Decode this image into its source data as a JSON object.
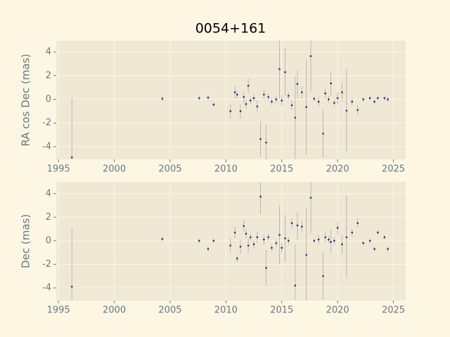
{
  "chart_data": [
    {
      "type": "scatter",
      "title": "0054+161",
      "ylabel": "RA cos Dec (mas)",
      "color": "#2a2a8a",
      "error_color": "#b0aca0",
      "grid": true,
      "xlim": [
        1994.8,
        2026.1
      ],
      "xticks": [
        1995,
        2000,
        2005,
        2010,
        2015,
        2020,
        2025
      ],
      "ylim": [
        -5.07,
        4.95
      ],
      "yticks": [
        -4,
        -2,
        0,
        2,
        4
      ],
      "x": [
        1996.2,
        2004.3,
        2007.6,
        2008.4,
        2008.9,
        2010.4,
        2010.8,
        2011.0,
        2011.3,
        2011.6,
        2011.8,
        2012.0,
        2012.2,
        2012.5,
        2012.8,
        2013.1,
        2013.4,
        2013.6,
        2013.8,
        2014.1,
        2014.5,
        2014.8,
        2015.0,
        2015.3,
        2015.6,
        2015.9,
        2016.2,
        2016.4,
        2016.8,
        2017.2,
        2017.6,
        2017.9,
        2018.3,
        2018.7,
        2018.9,
        2019.2,
        2019.4,
        2019.7,
        2020.0,
        2020.4,
        2020.8,
        2021.3,
        2021.8,
        2022.3,
        2022.9,
        2023.3,
        2023.6,
        2024.2,
        2024.5
      ],
      "values": [
        -4.9,
        0.05,
        0.1,
        0.15,
        -0.45,
        -1.0,
        0.6,
        0.4,
        -1.0,
        0.2,
        -0.4,
        1.15,
        -0.1,
        0.1,
        -0.6,
        -3.35,
        0.4,
        -3.65,
        0.2,
        -0.2,
        0.0,
        2.55,
        -0.1,
        2.3,
        0.3,
        -0.5,
        -1.55,
        1.3,
        0.6,
        -0.65,
        3.65,
        0.05,
        -0.2,
        -2.9,
        0.5,
        0.0,
        1.35,
        -0.3,
        0.1,
        0.6,
        -0.95,
        -0.2,
        -0.9,
        0.0,
        0.1,
        -0.2,
        0.1,
        0.1,
        0.0
      ],
      "errors": [
        5.0,
        0.2,
        0.2,
        0.2,
        0.2,
        0.6,
        0.5,
        0.3,
        0.6,
        0.5,
        0.4,
        0.6,
        0.3,
        0.3,
        0.5,
        1.5,
        0.4,
        1.5,
        0.3,
        0.3,
        0.3,
        2.5,
        0.4,
        2.0,
        0.3,
        0.4,
        3.5,
        1.2,
        0.5,
        4.0,
        3.0,
        0.2,
        0.4,
        2.0,
        0.4,
        0.3,
        1.0,
        0.3,
        0.5,
        0.8,
        3.5,
        0.3,
        0.4,
        0.2,
        0.2,
        0.2,
        0.2,
        0.2,
        0.2
      ]
    },
    {
      "type": "scatter",
      "ylabel": "Dec (mas)",
      "color": "#2a2a8a",
      "error_color": "#b0aca0",
      "grid": true,
      "xlim": [
        1994.8,
        2026.1
      ],
      "xticks": [
        1995,
        2000,
        2005,
        2010,
        2015,
        2020,
        2025
      ],
      "ylim": [
        -5.07,
        5.0
      ],
      "yticks": [
        -4,
        -2,
        0,
        2,
        4
      ],
      "x": [
        1996.2,
        2004.3,
        2007.6,
        2008.4,
        2008.9,
        2010.4,
        2010.8,
        2011.0,
        2011.3,
        2011.6,
        2011.8,
        2012.0,
        2012.2,
        2012.5,
        2012.8,
        2013.1,
        2013.4,
        2013.6,
        2013.8,
        2014.1,
        2014.5,
        2014.8,
        2015.0,
        2015.3,
        2015.6,
        2015.9,
        2016.2,
        2016.4,
        2016.8,
        2017.2,
        2017.6,
        2017.9,
        2018.3,
        2018.7,
        2018.9,
        2019.2,
        2019.4,
        2019.7,
        2020.0,
        2020.4,
        2020.8,
        2021.3,
        2021.8,
        2022.3,
        2022.9,
        2023.3,
        2023.6,
        2024.2,
        2024.5
      ],
      "values": [
        -3.9,
        0.15,
        0.0,
        -0.7,
        0.0,
        -0.4,
        0.7,
        -1.5,
        -0.5,
        1.25,
        0.6,
        -0.4,
        0.3,
        -0.3,
        0.3,
        3.75,
        0.1,
        -2.3,
        0.3,
        -0.6,
        -0.2,
        0.5,
        -0.6,
        0.2,
        0.0,
        1.5,
        -3.8,
        1.3,
        1.2,
        -1.2,
        3.65,
        0.0,
        0.1,
        -3.0,
        0.3,
        0.1,
        -0.1,
        0.0,
        1.1,
        -0.3,
        0.3,
        0.7,
        1.5,
        -0.2,
        0.0,
        -0.7,
        0.7,
        0.3,
        -0.7
      ],
      "errors": [
        5.0,
        0.2,
        0.2,
        0.2,
        0.2,
        0.6,
        0.5,
        0.3,
        0.6,
        0.5,
        0.4,
        0.6,
        0.3,
        0.3,
        0.5,
        1.5,
        0.4,
        1.5,
        0.3,
        0.3,
        0.3,
        2.5,
        0.4,
        2.0,
        0.3,
        0.4,
        3.5,
        1.2,
        0.5,
        4.0,
        3.0,
        0.2,
        0.4,
        2.0,
        0.4,
        0.3,
        1.0,
        0.3,
        0.5,
        0.8,
        3.5,
        0.3,
        0.4,
        0.2,
        0.2,
        0.2,
        0.2,
        0.2,
        0.2
      ]
    }
  ]
}
